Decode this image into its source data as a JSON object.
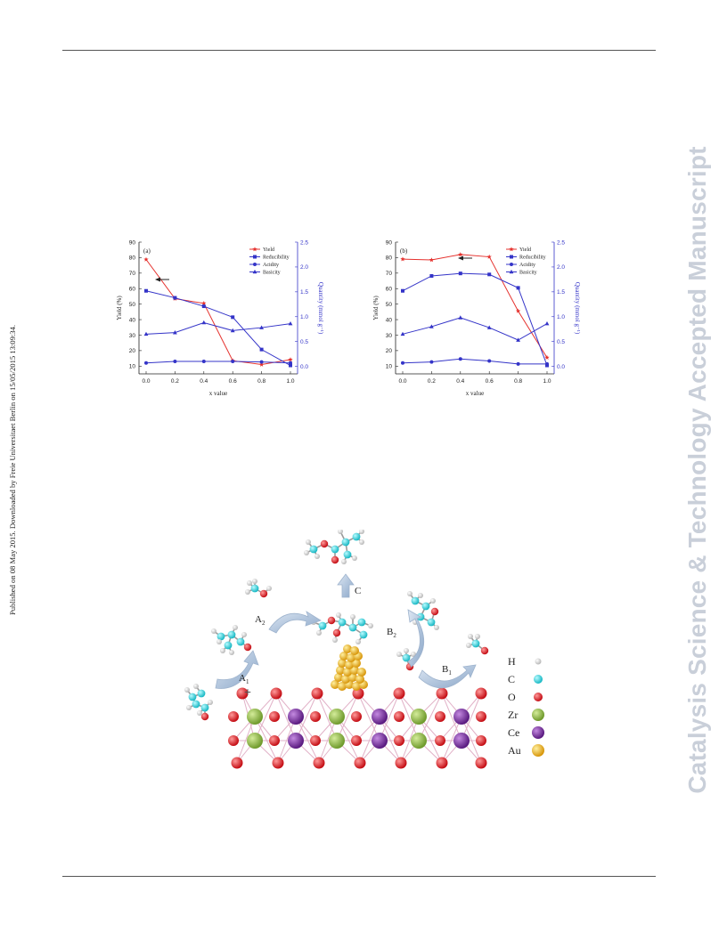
{
  "page": {
    "side_note": "Published on 08 May 2015. Downloaded by Freie Universitaet Berlin on 15/05/2015 13:09:34.",
    "watermark": "Catalysis Science & Technology Accepted Manuscript",
    "watermark_color": "#c9cfd9"
  },
  "chart_data": [
    {
      "type": "line",
      "panel_label": "(a)",
      "xlabel": "x value",
      "ylabel": "Yield (%)",
      "y2label": "Quantity (mmol g⁻¹)",
      "x": [
        0.0,
        0.2,
        0.4,
        0.6,
        0.8,
        1.0
      ],
      "x_ticks": [
        "0.0",
        "0.2",
        "0.4",
        "0.6",
        "0.8",
        "1.0"
      ],
      "ylim": [
        5,
        90
      ],
      "y_ticks": [
        "10",
        "20",
        "30",
        "40",
        "50",
        "60",
        "70",
        "80",
        "90"
      ],
      "y2lim": [
        -0.15,
        2.5
      ],
      "y2_ticks": [
        "0.0",
        "0.5",
        "1.0",
        "1.5",
        "2.0",
        "2.5"
      ],
      "legend_position": "top-right",
      "arrow_direction": "left",
      "series": [
        {
          "name": "Yield",
          "axis": "left",
          "color": "#e5312d",
          "marker": "star",
          "values": [
            78.8,
            53.5,
            50.5,
            13.5,
            11.0,
            14.2
          ]
        },
        {
          "name": "Reducibility",
          "axis": "right",
          "color": "#3434c8",
          "marker": "square",
          "values": [
            1.52,
            1.38,
            1.21,
            0.99,
            0.34,
            0.02
          ]
        },
        {
          "name": "Acidity",
          "axis": "right",
          "color": "#3434c8",
          "marker": "circle",
          "values": [
            0.07,
            0.1,
            0.1,
            0.1,
            0.09,
            0.07
          ]
        },
        {
          "name": "Basicity",
          "axis": "right",
          "color": "#3434c8",
          "marker": "triangle",
          "values": [
            0.65,
            0.68,
            0.88,
            0.72,
            0.78,
            0.86
          ]
        }
      ]
    },
    {
      "type": "line",
      "panel_label": "(b)",
      "xlabel": "x value",
      "ylabel": "Yield (%)",
      "y2label": "Quantity (mmol g⁻¹)",
      "x": [
        0.0,
        0.2,
        0.4,
        0.6,
        0.8,
        1.0
      ],
      "x_ticks": [
        "0.0",
        "0.2",
        "0.4",
        "0.6",
        "0.8",
        "1.0"
      ],
      "ylim": [
        5,
        90
      ],
      "y_ticks": [
        "10",
        "20",
        "30",
        "40",
        "50",
        "60",
        "70",
        "80",
        "90"
      ],
      "y2lim": [
        -0.15,
        2.5
      ],
      "y2_ticks": [
        "0.0",
        "0.5",
        "1.0",
        "1.5",
        "2.0",
        "2.5"
      ],
      "legend_position": "top-right",
      "arrow_direction": "left",
      "series": [
        {
          "name": "Yield",
          "axis": "left",
          "color": "#e5312d",
          "marker": "star",
          "values": [
            79.0,
            78.5,
            82.0,
            80.5,
            45.5,
            15.5
          ]
        },
        {
          "name": "Reducibility",
          "axis": "right",
          "color": "#3434c8",
          "marker": "square",
          "values": [
            1.52,
            1.82,
            1.87,
            1.85,
            1.58,
            0.02
          ]
        },
        {
          "name": "Acidity",
          "axis": "right",
          "color": "#3434c8",
          "marker": "circle",
          "values": [
            0.07,
            0.09,
            0.15,
            0.11,
            0.05,
            0.05
          ]
        },
        {
          "name": "Basicity",
          "axis": "right",
          "color": "#3434c8",
          "marker": "triangle",
          "values": [
            0.65,
            0.8,
            0.98,
            0.78,
            0.53,
            0.86
          ]
        }
      ]
    }
  ],
  "scheme": {
    "pathway_labels": {
      "a1": "A",
      "a2": "A",
      "b1": "B",
      "b2": "B",
      "c": "C"
    },
    "pathway_subscripts": {
      "a1": "1",
      "a2": "2",
      "b1": "1",
      "b2": "2"
    },
    "plus_sign": "+",
    "legend": [
      {
        "symbol": "H",
        "color": "#f2f2f2"
      },
      {
        "symbol": "C",
        "color": "#22d3dc"
      },
      {
        "symbol": "O",
        "color": "#e3141c"
      },
      {
        "symbol": "Zr",
        "color": "#8db540"
      },
      {
        "symbol": "Ce",
        "color": "#7a2ea0"
      },
      {
        "symbol": "Au",
        "color": "#f0b417"
      }
    ]
  }
}
